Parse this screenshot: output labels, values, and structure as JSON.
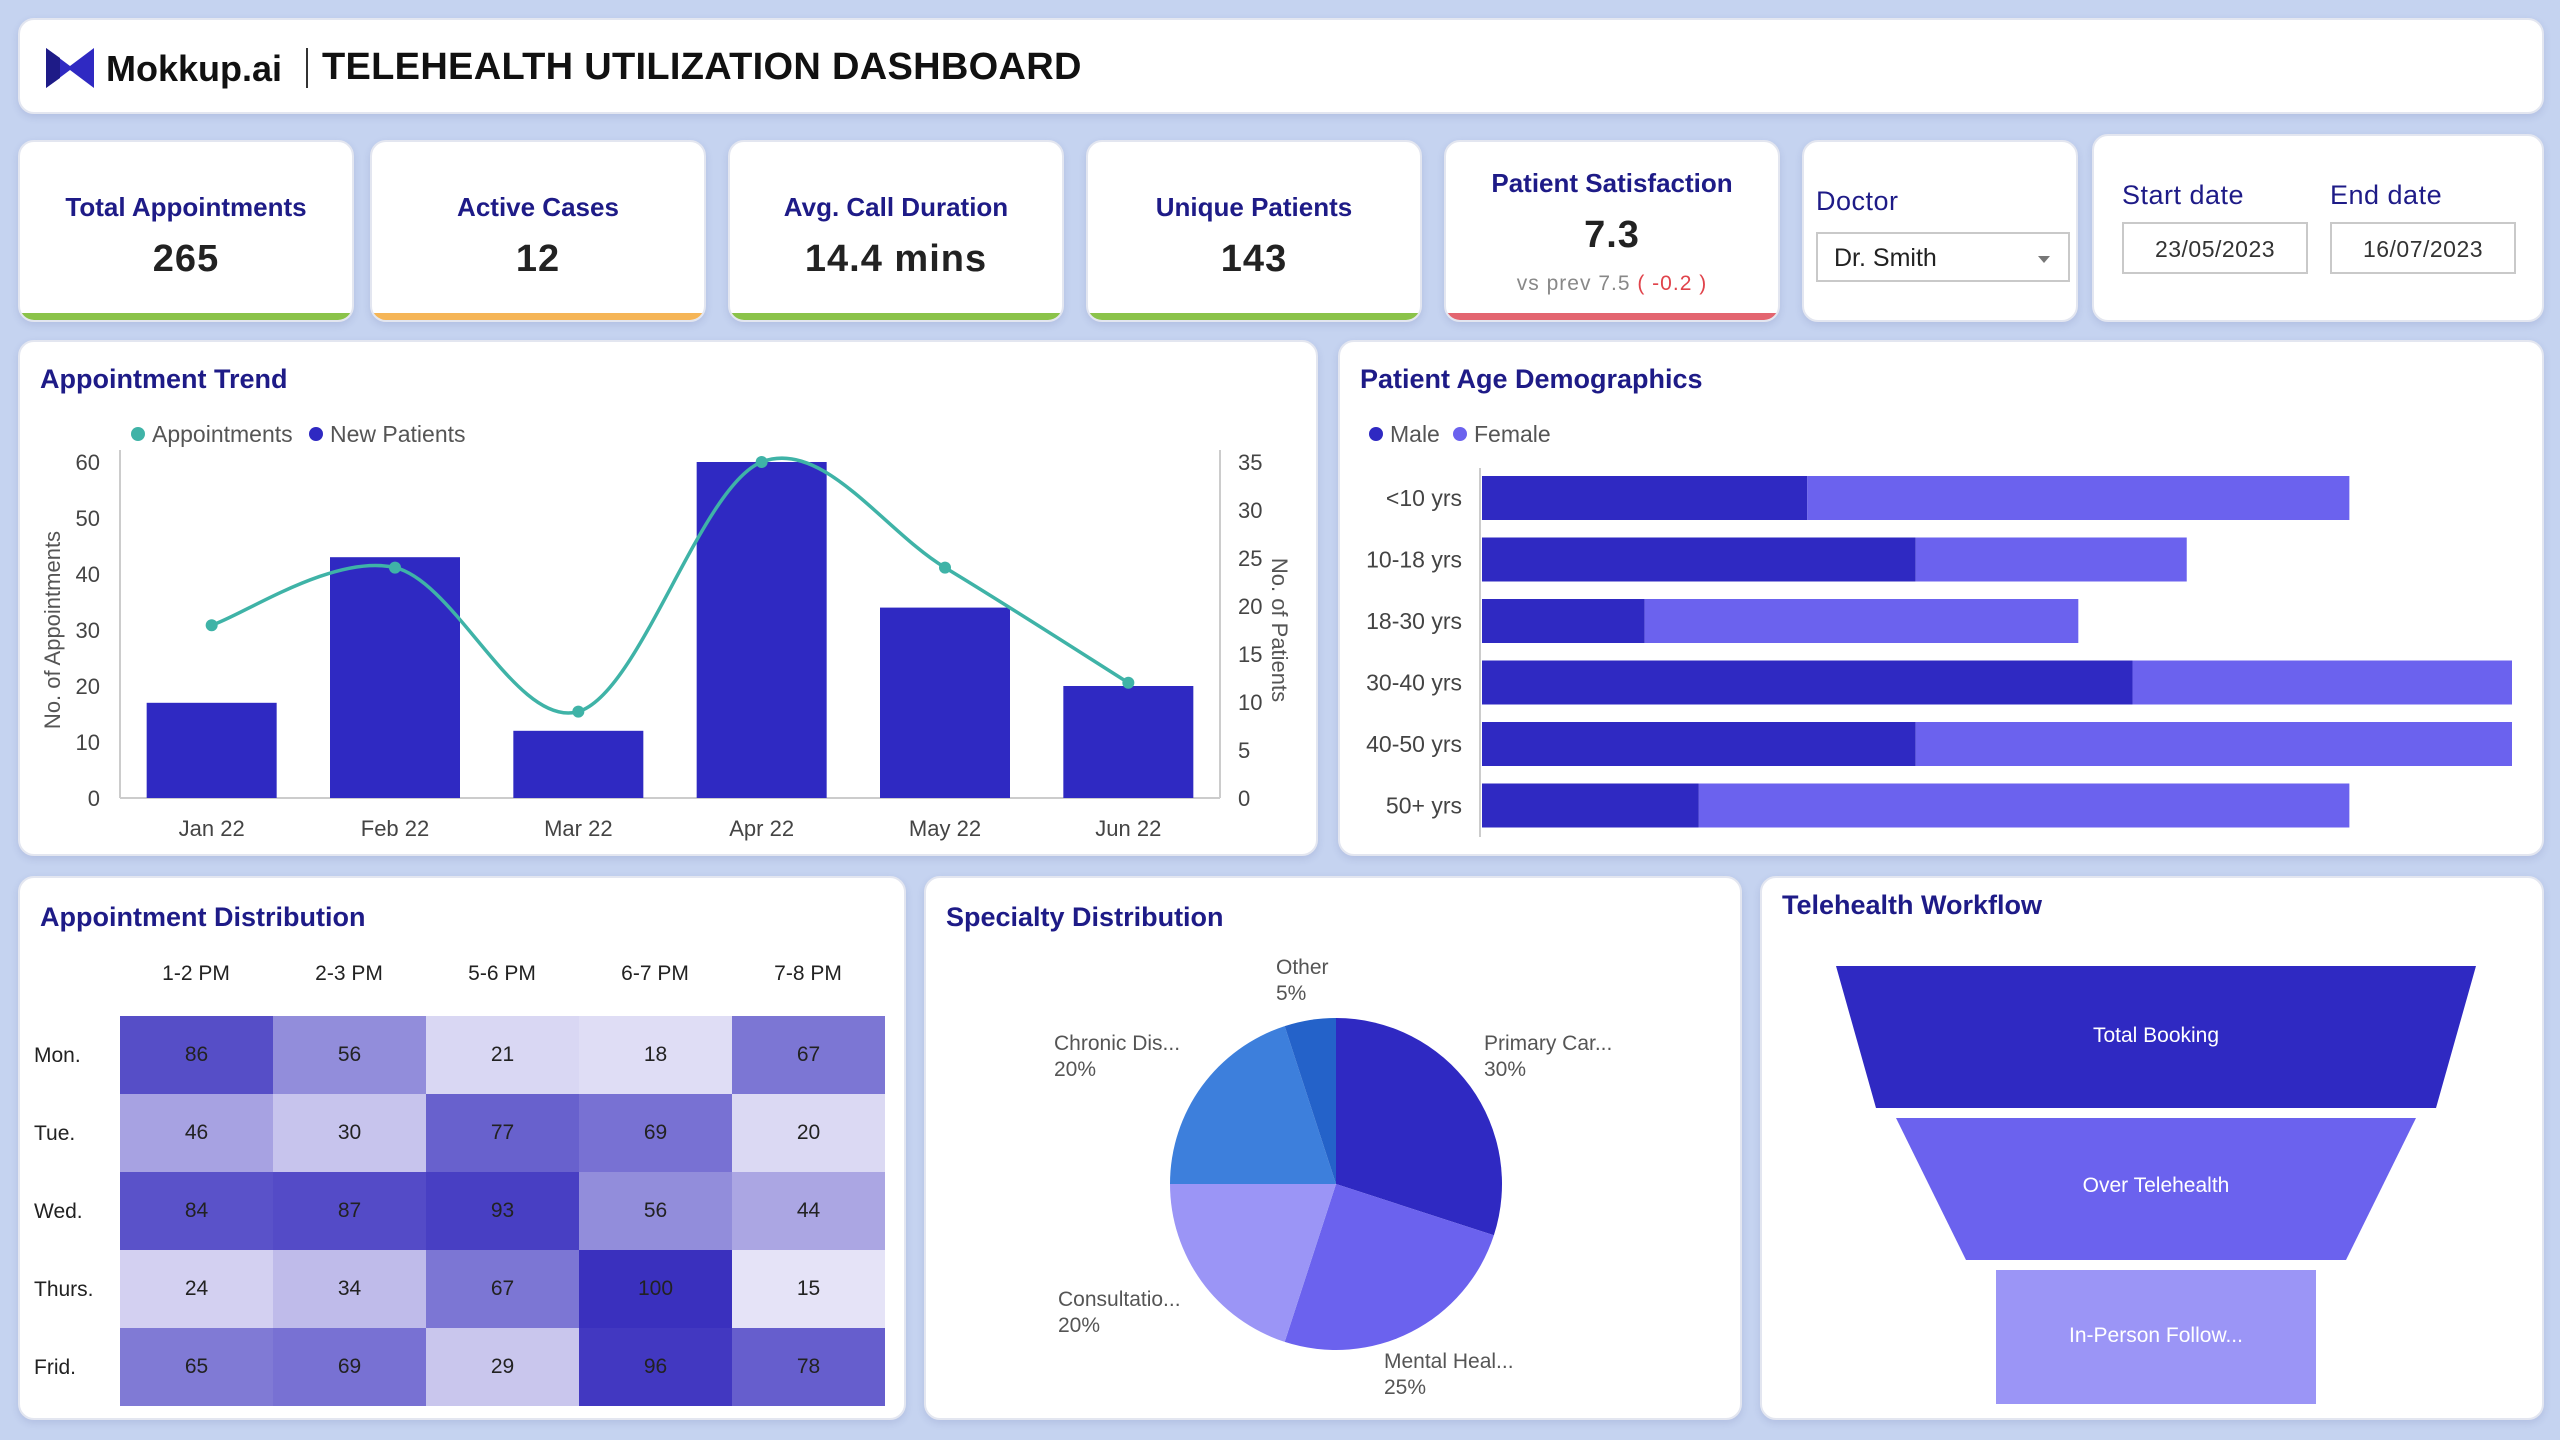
{
  "header": {
    "logo_text": "Mokkup.ai",
    "title": "TELEHEALTH UTILIZATION DASHBOARD"
  },
  "kpis": [
    {
      "label": "Total Appointments",
      "value": "265",
      "bar_color": "#8bc34a"
    },
    {
      "label": "Active Cases",
      "value": "12",
      "bar_color": "#f5b557"
    },
    {
      "label": "Avg. Call Duration",
      "value": "14.4 mins",
      "bar_color": "#8bc34a"
    },
    {
      "label": "Unique Patients",
      "value": "143",
      "bar_color": "#8bc34a"
    },
    {
      "label": "Patient Satisfaction",
      "value": "7.3",
      "sub": "vs prev 7.5",
      "delta": "( -0.2 )",
      "bar_color": "#e36570"
    }
  ],
  "filters": {
    "doctor_label": "Doctor",
    "doctor_value": "Dr. Smith",
    "start_label": "Start date",
    "start_value": "23/05/2023",
    "end_label": "End date",
    "end_value": "16/07/2023"
  },
  "colors": {
    "male": "#2f29c2",
    "female": "#6b62ee",
    "appointments_line": "#3fb3a7",
    "new_patients": "#2f29c2",
    "bar": "#2f29c2"
  },
  "trend": {
    "title": "Appointment Trend",
    "chart_data": {
      "type": "bar",
      "categories": [
        "Jan 22",
        "Feb 22",
        "Mar 22",
        "Apr 22",
        "May 22",
        "Jun 22"
      ],
      "series": [
        {
          "name": "New Patients",
          "type": "bar",
          "axis": "left",
          "values": [
            17,
            43,
            12,
            60,
            34,
            20
          ]
        },
        {
          "name": "Appointments",
          "type": "line",
          "axis": "right",
          "values": [
            18,
            24,
            9,
            35,
            24,
            12
          ]
        }
      ],
      "legend": [
        "Appointments",
        "New Patients"
      ],
      "ylabel": "No. of Appointments",
      "y2label": "No. of Patients",
      "ylim": [
        0,
        60
      ],
      "y2lim": [
        0,
        35
      ],
      "yticks": [
        0,
        10,
        20,
        30,
        40,
        50,
        60
      ],
      "y2ticks": [
        0,
        5,
        10,
        15,
        20,
        25,
        30,
        35
      ]
    }
  },
  "demographics": {
    "title": "Patient Age Demographics",
    "chart_data": {
      "type": "bar",
      "orientation": "horizontal",
      "stacked": true,
      "categories": [
        "<10 yrs",
        "10-18 yrs",
        "18-30 yrs",
        "30-40 yrs",
        "40-50 yrs",
        "50+ yrs"
      ],
      "series": [
        {
          "name": "Male",
          "values": [
            30,
            40,
            15,
            60,
            40,
            20
          ]
        },
        {
          "name": "Female",
          "values": [
            50,
            25,
            40,
            35,
            55,
            60
          ]
        }
      ],
      "xlim": [
        0,
        95
      ]
    }
  },
  "distribution": {
    "title": "Appointment Distribution",
    "chart_data": {
      "type": "heatmap",
      "columns": [
        "1-2 PM",
        "2-3 PM",
        "5-6 PM",
        "6-7 PM",
        "7-8 PM"
      ],
      "rows": [
        "Mon.",
        "Tue.",
        "Wed.",
        "Thurs.",
        "Frid."
      ],
      "values": [
        [
          86,
          56,
          21,
          18,
          67
        ],
        [
          46,
          30,
          77,
          69,
          20
        ],
        [
          84,
          87,
          93,
          56,
          44
        ],
        [
          24,
          34,
          67,
          100,
          15
        ],
        [
          65,
          69,
          29,
          96,
          78
        ]
      ]
    }
  },
  "specialty": {
    "title": "Specialty Distribution",
    "chart_data": {
      "type": "pie",
      "slices": [
        {
          "label": "Primary Car...",
          "pct": "30%",
          "value": 30,
          "color": "#2f29c2"
        },
        {
          "label": "Mental Heal...",
          "pct": "25%",
          "value": 25,
          "color": "#6b62ee"
        },
        {
          "label": "Consultatio...",
          "pct": "20%",
          "value": 20,
          "color": "#9b95f6"
        },
        {
          "label": "Chronic Dis...",
          "pct": "20%",
          "value": 20,
          "color": "#3d7fdc"
        },
        {
          "label": "Other",
          "pct": "5%",
          "value": 5,
          "color": "#2462c9"
        }
      ]
    }
  },
  "workflow": {
    "title": "Telehealth Workflow",
    "stages": [
      {
        "label": "Total Booking",
        "color": "#2f29c2"
      },
      {
        "label": "Over Telehealth",
        "color": "#6b62ee"
      },
      {
        "label": "In-Person Follow...",
        "color": "#9b95f6"
      }
    ]
  }
}
